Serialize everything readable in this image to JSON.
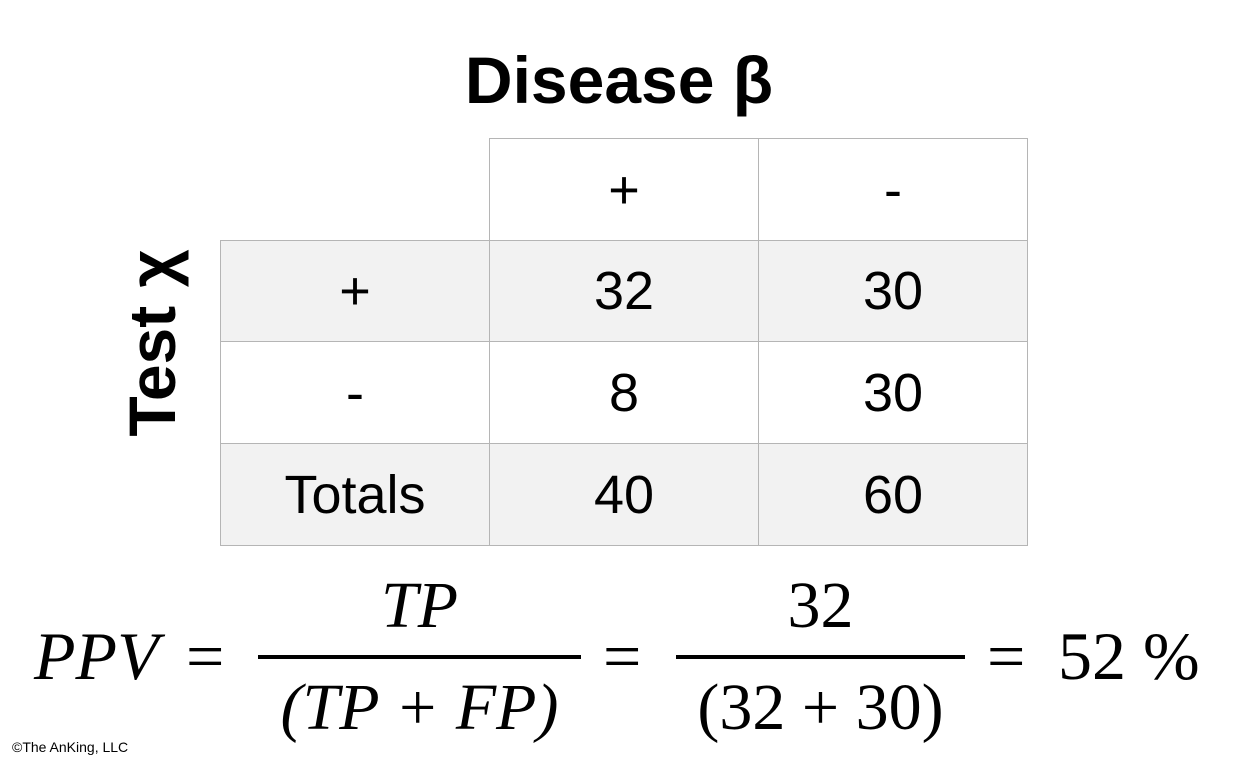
{
  "title": "Disease β",
  "row_axis_label": "Test χ",
  "table": {
    "col_headers": [
      "+",
      "-"
    ],
    "rows": [
      {
        "label": "+",
        "cells": [
          "32",
          "30"
        ]
      },
      {
        "label": "-",
        "cells": [
          "8",
          "30"
        ]
      },
      {
        "label": "Totals",
        "cells": [
          "40",
          "60"
        ]
      }
    ]
  },
  "formula": {
    "lhs": "PPV",
    "eq1": "=",
    "frac1_num": "TP",
    "frac1_den": "(TP + FP)",
    "eq2": "=",
    "frac2_num": "32",
    "frac2_den": "(32 + 30)",
    "eq3": "=",
    "result": "52 %"
  },
  "credit": "©The AnKing, LLC"
}
